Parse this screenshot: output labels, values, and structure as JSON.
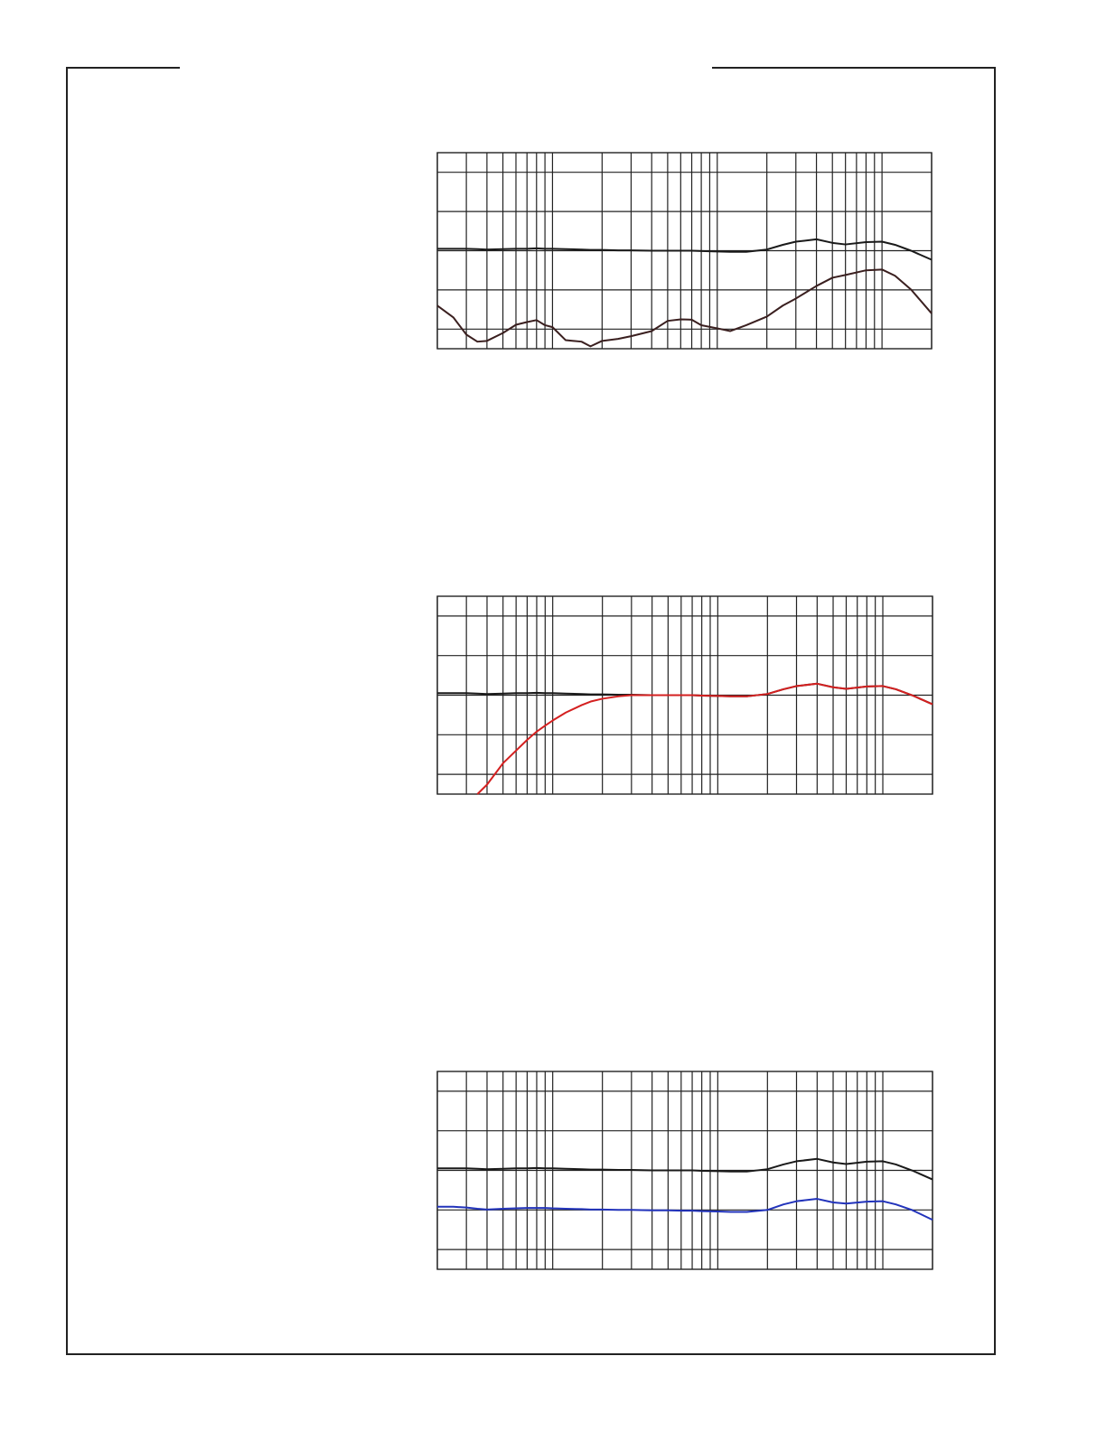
{
  "chart_data": [
    {
      "type": "line",
      "log_x": true,
      "grid": true,
      "x": [
        20,
        25,
        30,
        35,
        40,
        50,
        60,
        70,
        80,
        90,
        100,
        120,
        150,
        170,
        200,
        250,
        300,
        400,
        500,
        600,
        700,
        800,
        1000,
        1200,
        1500,
        2000,
        2500,
        3000,
        4000,
        5000,
        6000,
        8000,
        10000,
        12000,
        15000,
        20000
      ],
      "xlim": [
        20,
        20000
      ],
      "ylim": [
        -25,
        25
      ],
      "xticks": [
        20,
        30,
        40,
        50,
        60,
        70,
        80,
        90,
        100,
        200,
        300,
        400,
        500,
        600,
        700,
        800,
        900,
        1000,
        2000,
        3000,
        4000,
        5000,
        6000,
        7000,
        8000,
        9000,
        10000,
        20000
      ],
      "yticks": [
        -20,
        -10,
        0,
        10,
        20
      ],
      "series": [
        {
          "color": "#1a1a1a",
          "values": [
            0.5,
            0.5,
            0.5,
            0.4,
            0.3,
            0.4,
            0.5,
            0.5,
            0.6,
            0.5,
            0.5,
            0.4,
            0.3,
            0.2,
            0.2,
            0.1,
            0.1,
            0,
            0,
            0,
            0,
            -0.1,
            -0.2,
            -0.3,
            -0.3,
            0.3,
            1.5,
            2.3,
            2.9,
            2.0,
            1.6,
            2.2,
            2.3,
            1.5,
            0,
            -2.3
          ]
        },
        {
          "color": "#3a1f1f",
          "values": [
            -14,
            -17,
            -21.4,
            -23.2,
            -23,
            -21,
            -18.9,
            -18.2,
            -17.7,
            -19,
            -19.5,
            -22.8,
            -23.2,
            -24.4,
            -23,
            -22.5,
            -21.8,
            -20.5,
            -17.9,
            -17.5,
            -17.6,
            -19,
            -19.8,
            -20.5,
            -19,
            -16.8,
            -14,
            -12.2,
            -9,
            -6.9,
            -6.2,
            -5,
            -4.8,
            -6.4,
            -9.9,
            -16
          ]
        }
      ]
    },
    {
      "type": "line",
      "log_x": true,
      "grid": true,
      "x": [
        20,
        25,
        30,
        35,
        40,
        50,
        60,
        70,
        80,
        90,
        100,
        120,
        150,
        170,
        200,
        250,
        300,
        400,
        500,
        600,
        700,
        800,
        1000,
        1200,
        1500,
        2000,
        2500,
        3000,
        4000,
        5000,
        6000,
        8000,
        10000,
        12000,
        15000,
        20000
      ],
      "xlim": [
        20,
        20000
      ],
      "ylim": [
        -25,
        25
      ],
      "xticks": [
        20,
        30,
        40,
        50,
        60,
        70,
        80,
        90,
        100,
        200,
        300,
        400,
        500,
        600,
        700,
        800,
        900,
        1000,
        2000,
        3000,
        4000,
        5000,
        6000,
        7000,
        8000,
        9000,
        10000,
        20000
      ],
      "yticks": [
        -20,
        -10,
        0,
        10,
        20
      ],
      "series": [
        {
          "color": "#1a1a1a",
          "values": [
            0.5,
            0.5,
            0.5,
            0.4,
            0.3,
            0.4,
            0.5,
            0.5,
            0.6,
            0.5,
            0.5,
            0.4,
            0.3,
            0.2,
            0.2,
            0.1,
            0.1,
            0,
            0,
            0,
            0,
            -0.1,
            -0.2,
            -0.3,
            -0.3,
            0.3,
            1.5,
            2.3,
            2.9,
            2.0,
            1.6,
            2.2,
            2.3,
            1.5,
            0,
            -2.3
          ]
        },
        {
          "color": "#d42020",
          "values": [
            null,
            null,
            null,
            -25,
            -22.6,
            -17.2,
            -14,
            -11.3,
            -9.2,
            -7.7,
            -6.4,
            -4.4,
            -2.5,
            -1.6,
            -0.9,
            -0.3,
            0,
            0,
            0,
            0,
            0,
            -0.1,
            -0.2,
            -0.3,
            -0.3,
            0.3,
            1.5,
            2.3,
            2.9,
            2.0,
            1.6,
            2.2,
            2.3,
            1.5,
            0,
            -2.3
          ]
        }
      ]
    },
    {
      "type": "line",
      "log_x": true,
      "grid": true,
      "x": [
        20,
        25,
        30,
        35,
        40,
        50,
        60,
        70,
        80,
        90,
        100,
        120,
        150,
        170,
        200,
        250,
        300,
        400,
        500,
        600,
        700,
        800,
        1000,
        1200,
        1500,
        2000,
        2500,
        3000,
        4000,
        5000,
        6000,
        8000,
        10000,
        12000,
        15000,
        20000
      ],
      "xlim": [
        20,
        20000
      ],
      "ylim": [
        -25,
        25
      ],
      "xticks": [
        20,
        30,
        40,
        50,
        60,
        70,
        80,
        90,
        100,
        200,
        300,
        400,
        500,
        600,
        700,
        800,
        900,
        1000,
        2000,
        3000,
        4000,
        5000,
        6000,
        7000,
        8000,
        9000,
        10000,
        20000
      ],
      "yticks": [
        -20,
        -10,
        0,
        10,
        20
      ],
      "series": [
        {
          "color": "#1a1a1a",
          "values": [
            0.5,
            0.5,
            0.5,
            0.4,
            0.3,
            0.4,
            0.5,
            0.5,
            0.6,
            0.5,
            0.5,
            0.4,
            0.3,
            0.2,
            0.2,
            0.1,
            0.1,
            0,
            0,
            0,
            0,
            -0.1,
            -0.2,
            -0.3,
            -0.3,
            0.3,
            1.5,
            2.3,
            2.9,
            2.0,
            1.6,
            2.2,
            2.3,
            1.5,
            0,
            -2.3
          ]
        },
        {
          "color": "#2233bb",
          "values": [
            -9.2,
            -9.2,
            -9.4,
            -9.7,
            -9.9,
            -9.7,
            -9.6,
            -9.5,
            -9.5,
            -9.5,
            -9.6,
            -9.7,
            -9.8,
            -9.9,
            -9.9,
            -10,
            -10,
            -10.1,
            -10.1,
            -10.2,
            -10.2,
            -10.3,
            -10.4,
            -10.5,
            -10.5,
            -10,
            -8.6,
            -7.8,
            -7.2,
            -8.1,
            -8.4,
            -7.9,
            -7.8,
            -8.6,
            -10,
            -12.5
          ]
        }
      ]
    }
  ]
}
